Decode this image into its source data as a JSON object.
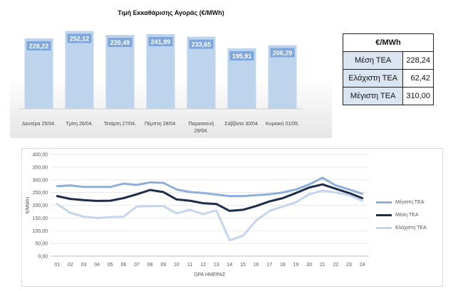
{
  "colors": {
    "bar_fill": "#bed3ec",
    "bar_label_bg": "#7fa6db",
    "max_line": "#8eaedb",
    "avg_line": "#1c2d4a",
    "min_line": "#c3d6ee",
    "table_label_bg": "#dbe5f1"
  },
  "chart_data": [
    {
      "type": "bar",
      "title": "Τιμή Εκκαθάρισης Αγοράς (€/MWh)",
      "categories": [
        "Δευτέρα 25/04.",
        "Τρίτη 26/04.",
        "Τετάρτη 27/04.",
        "Πέμπτη 28/04.",
        "Παρασκευή 29/04.",
        "Σάββατο 30/04.",
        "Κυριακή 01/05."
      ],
      "category_lines": [
        [
          "Δευτέρα 25/04."
        ],
        [
          "Τρίτη 26/04."
        ],
        [
          "Τετάρτη 27/04."
        ],
        [
          "Πέμπτη 28/04."
        ],
        [
          "Παρασκευή",
          "29/04."
        ],
        [
          "Σάββατο 30/04."
        ],
        [
          "Κυριακή 01/05."
        ]
      ],
      "values": [
        228.22,
        252.12,
        239.49,
        241.99,
        233.65,
        195.91,
        206.29
      ],
      "value_labels": [
        "228,22",
        "252,12",
        "239,49",
        "241,99",
        "233,65",
        "195,91",
        "206,29"
      ]
    },
    {
      "type": "line",
      "xlabel": "ΩΡΑ ΗΜΕΡΑΣ",
      "ylabel": "€/MWH",
      "ylim": [
        0,
        400
      ],
      "yticks": [
        "0,00",
        "50,00",
        "100,00",
        "150,00",
        "200,00",
        "250,00",
        "300,00",
        "350,00",
        "400,00"
      ],
      "x": [
        "01",
        "02",
        "03",
        "04",
        "05",
        "06",
        "07",
        "08",
        "09",
        "10",
        "11",
        "12",
        "13",
        "14",
        "15",
        "16",
        "17",
        "18",
        "19",
        "20",
        "21",
        "22",
        "23",
        "24"
      ],
      "grid": true,
      "legend_position": "right",
      "series": [
        {
          "name": "Μέγιστη ΤΕΑ",
          "values": [
            275,
            278,
            272,
            272,
            272,
            285,
            280,
            290,
            288,
            262,
            252,
            248,
            242,
            236,
            236,
            240,
            243,
            250,
            262,
            282,
            308,
            278,
            262,
            245
          ]
        },
        {
          "name": "Μέση ΤΕΑ",
          "values": [
            236,
            225,
            220,
            217,
            218,
            228,
            243,
            260,
            252,
            223,
            218,
            208,
            205,
            178,
            182,
            197,
            215,
            228,
            248,
            270,
            282,
            265,
            248,
            228
          ]
        },
        {
          "name": "Ελάχιστη ΤΕΑ",
          "values": [
            205,
            170,
            155,
            150,
            153,
            155,
            195,
            197,
            197,
            168,
            182,
            165,
            180,
            62,
            80,
            140,
            178,
            195,
            212,
            243,
            258,
            250,
            240,
            218
          ]
        }
      ]
    }
  ],
  "stats_table": {
    "header": "€/MWh",
    "rows": [
      {
        "label": "Μέση ΤΕΑ",
        "value": "228,24"
      },
      {
        "label": "Ελάχιστη ΤΕΑ",
        "value": "62,42"
      },
      {
        "label": "Μέγιστη ΤΕΑ",
        "value": "310,00"
      }
    ]
  }
}
